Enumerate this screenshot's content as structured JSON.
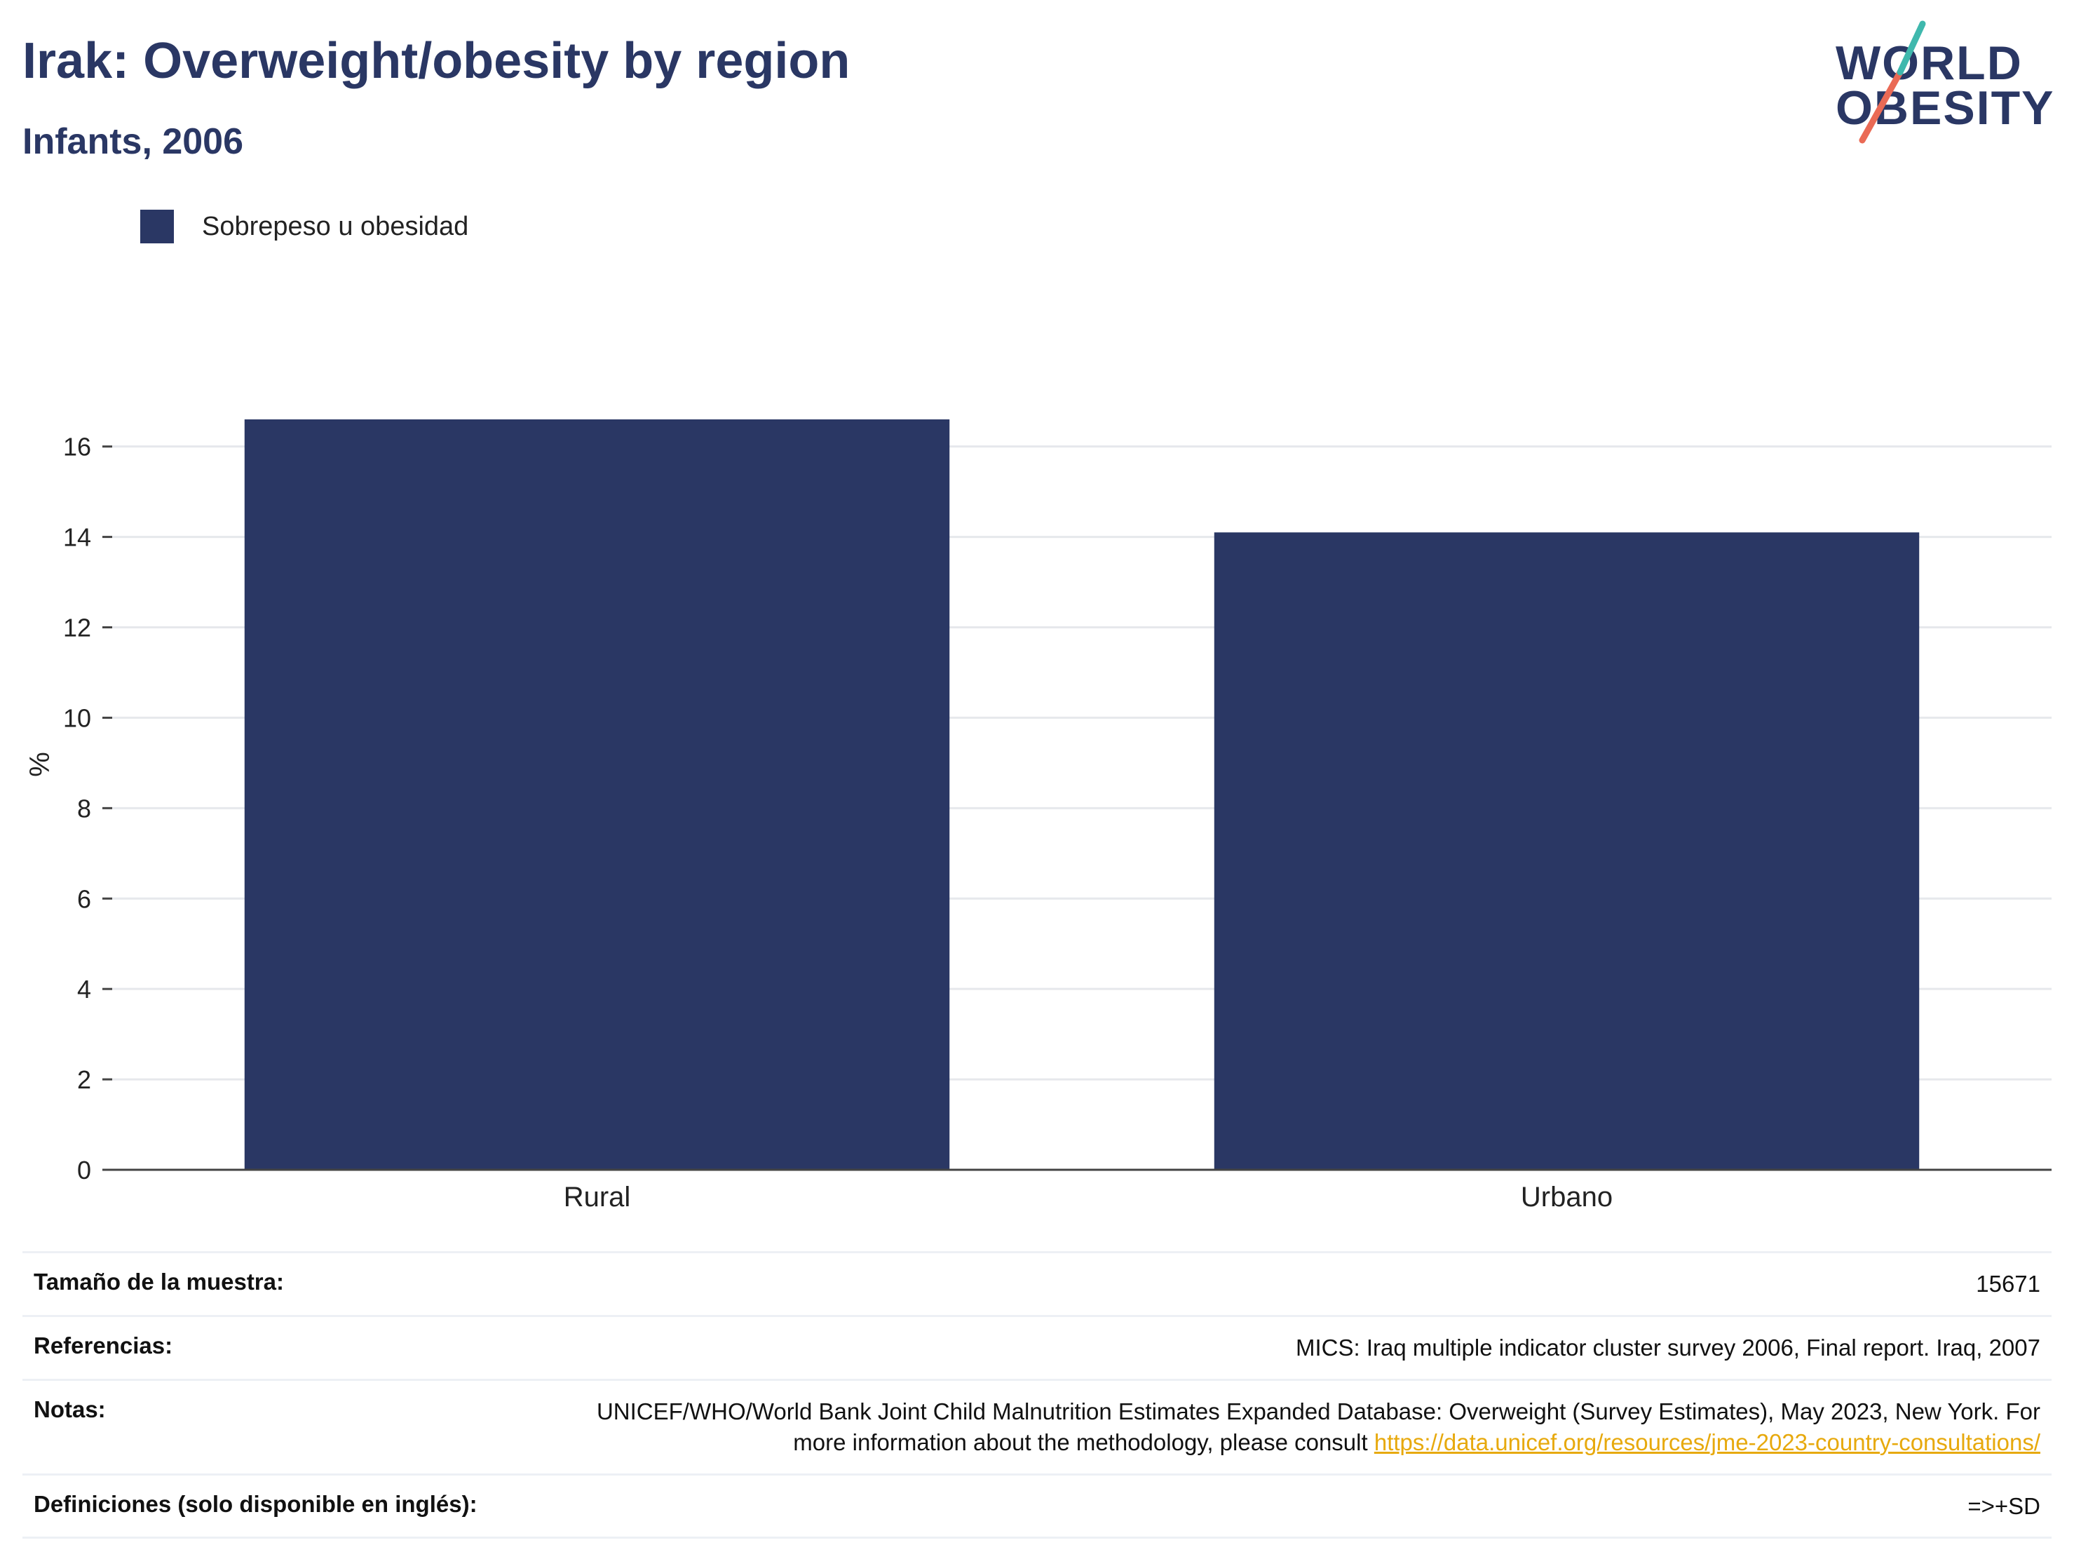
{
  "header": {
    "title": "Irak: Overweight/obesity by region",
    "subtitle": "Infants, 2006"
  },
  "logo": {
    "line1": "WORLD",
    "line2": "OBESITY",
    "colors": {
      "text": "#2a3764",
      "teal": "#3fb8ad",
      "coral": "#ea6a55"
    }
  },
  "chart_data": {
    "type": "bar",
    "categories": [
      "Rural",
      "Urbano"
    ],
    "series": [
      {
        "name": "Sobrepeso u obesidad",
        "values": [
          16.6,
          14.1
        ],
        "color": "#2a3764"
      }
    ],
    "ylabel": "%",
    "xlabel": "",
    "ylim": [
      0,
      17.5
    ],
    "yticks": [
      0,
      2,
      4,
      6,
      8,
      10,
      12,
      14,
      16
    ],
    "grid": true,
    "legend_position": "top-left"
  },
  "info": {
    "rows": [
      {
        "key": "Tamaño de la muestra:",
        "value": "15671"
      },
      {
        "key": "Referencias:",
        "value": "MICS: Iraq multiple indicator cluster survey 2006, Final report. Iraq, 2007"
      },
      {
        "key": "Notas:",
        "value": "UNICEF/WHO/World Bank Joint Child Malnutrition Estimates Expanded Database: Overweight (Survey Estimates), May 2023, New York. For more information about the methodology, please consult",
        "link": "https://data.unicef.org/resources/jme-2023-country-consultations/"
      },
      {
        "key": "Definiciones (solo disponible en inglés):",
        "value": "=>+SD"
      }
    ]
  }
}
